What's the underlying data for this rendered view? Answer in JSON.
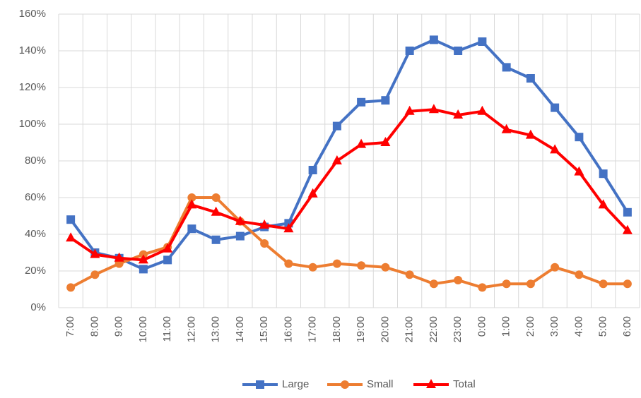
{
  "chart_data": {
    "type": "line",
    "categories": [
      "7:00",
      "8:00",
      "9:00",
      "10:00",
      "11:00",
      "12:00",
      "13:00",
      "14:00",
      "15:00",
      "16:00",
      "17:00",
      "18:00",
      "19:00",
      "20:00",
      "21:00",
      "22:00",
      "23:00",
      "0:00",
      "1:00",
      "2:00",
      "3:00",
      "4:00",
      "5:00",
      "6:00"
    ],
    "series": [
      {
        "name": "Large",
        "color": "#4472c4",
        "marker": "square",
        "values": [
          48,
          30,
          27,
          21,
          26,
          43,
          37,
          39,
          44,
          46,
          75,
          99,
          112,
          113,
          140,
          146,
          140,
          145,
          131,
          125,
          109,
          93,
          73,
          52
        ]
      },
      {
        "name": "Small",
        "color": "#ed7d31",
        "marker": "circle",
        "values": [
          11,
          18,
          24,
          29,
          33,
          60,
          60,
          47,
          35,
          24,
          22,
          24,
          23,
          22,
          18,
          13,
          15,
          11,
          13,
          13,
          22,
          18,
          13,
          13
        ]
      },
      {
        "name": "Total",
        "color": "#ff0000",
        "marker": "triangle",
        "values": [
          38,
          29,
          27,
          26,
          32,
          56,
          52,
          47,
          45,
          43,
          62,
          80,
          89,
          90,
          107,
          108,
          105,
          107,
          97,
          94,
          86,
          74,
          56,
          42
        ]
      }
    ],
    "ylim": [
      0,
      160
    ],
    "yticks": [
      {
        "value": 0,
        "label": "0%"
      },
      {
        "value": 20,
        "label": "20%"
      },
      {
        "value": 40,
        "label": "40%"
      },
      {
        "value": 60,
        "label": "60%"
      },
      {
        "value": 80,
        "label": "80%"
      },
      {
        "value": 100,
        "label": "100%"
      },
      {
        "value": 120,
        "label": "120%"
      },
      {
        "value": 140,
        "label": "140%"
      },
      {
        "value": 160,
        "label": "160%"
      }
    ],
    "grid": true,
    "legend": "bottom"
  }
}
